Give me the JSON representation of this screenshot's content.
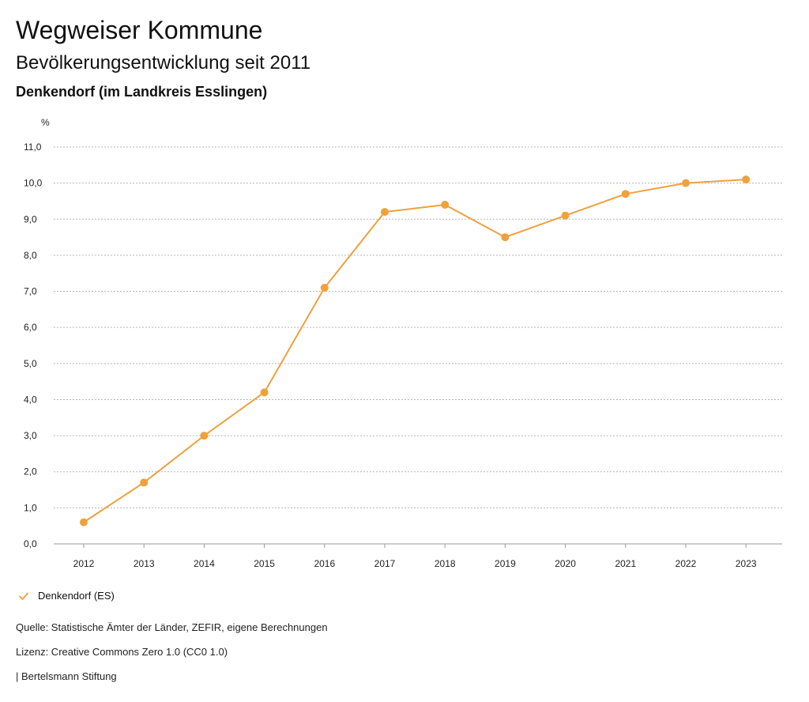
{
  "header": {
    "title": "Wegweiser Kommune",
    "subtitle": "Bevölkerungsentwicklung seit 2011",
    "region": "Denkendorf (im Landkreis Esslingen)"
  },
  "colors": {
    "series": "#f0a03c",
    "grid": "#b8b8b8"
  },
  "chart_data": {
    "type": "line",
    "title": "Bevölkerungsentwicklung seit 2011",
    "ylabel": "%",
    "xlabel": "",
    "ylim": [
      0,
      11
    ],
    "yticks": [
      "0,0",
      "1,0",
      "2,0",
      "3,0",
      "4,0",
      "5,0",
      "6,0",
      "7,0",
      "8,0",
      "9,0",
      "10,0",
      "11,0"
    ],
    "categories": [
      "2012",
      "2013",
      "2014",
      "2015",
      "2016",
      "2017",
      "2018",
      "2019",
      "2020",
      "2021",
      "2022",
      "2023"
    ],
    "series": [
      {
        "name": "Denkendorf (ES)",
        "values": [
          0.6,
          1.7,
          3.0,
          4.2,
          7.1,
          9.2,
          9.4,
          8.5,
          9.1,
          9.7,
          10.0,
          10.1
        ]
      }
    ],
    "grid": true,
    "legend_position": "bottom-left"
  },
  "footer": {
    "source": "Quelle: Statistische Ämter der Länder, ZEFIR, eigene Berechnungen",
    "license": "Lizenz: Creative Commons Zero 1.0 (CC0 1.0)",
    "publisher": "| Bertelsmann Stiftung"
  }
}
